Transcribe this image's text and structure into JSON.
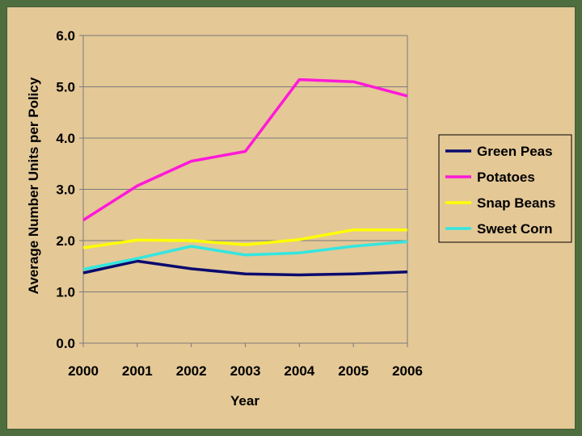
{
  "chart_data": {
    "type": "line",
    "title": "",
    "xlabel": "Year",
    "ylabel": "Average Number Units per Policy",
    "categories": [
      "2000",
      "2001",
      "2002",
      "2003",
      "2004",
      "2005",
      "2006"
    ],
    "ylim": [
      0,
      6
    ],
    "yticks": [
      "0.0",
      "1.0",
      "2.0",
      "3.0",
      "4.0",
      "5.0",
      "6.0"
    ],
    "grid": true,
    "legend_position": "right",
    "series": [
      {
        "name": "Green Peas",
        "color": "#0a0a6e",
        "values": [
          1.37,
          1.6,
          1.45,
          1.35,
          1.33,
          1.35,
          1.39
        ]
      },
      {
        "name": "Potatoes",
        "color": "#ff19d9",
        "values": [
          2.4,
          3.07,
          3.55,
          3.74,
          5.14,
          5.1,
          4.82
        ]
      },
      {
        "name": "Snap Beans",
        "color": "#ffff00",
        "values": [
          1.86,
          2.01,
          2.0,
          1.92,
          2.02,
          2.21,
          2.21
        ]
      },
      {
        "name": "Sweet Corn",
        "color": "#33e6e0",
        "values": [
          1.44,
          1.65,
          1.89,
          1.72,
          1.76,
          1.89,
          1.98
        ]
      }
    ]
  }
}
